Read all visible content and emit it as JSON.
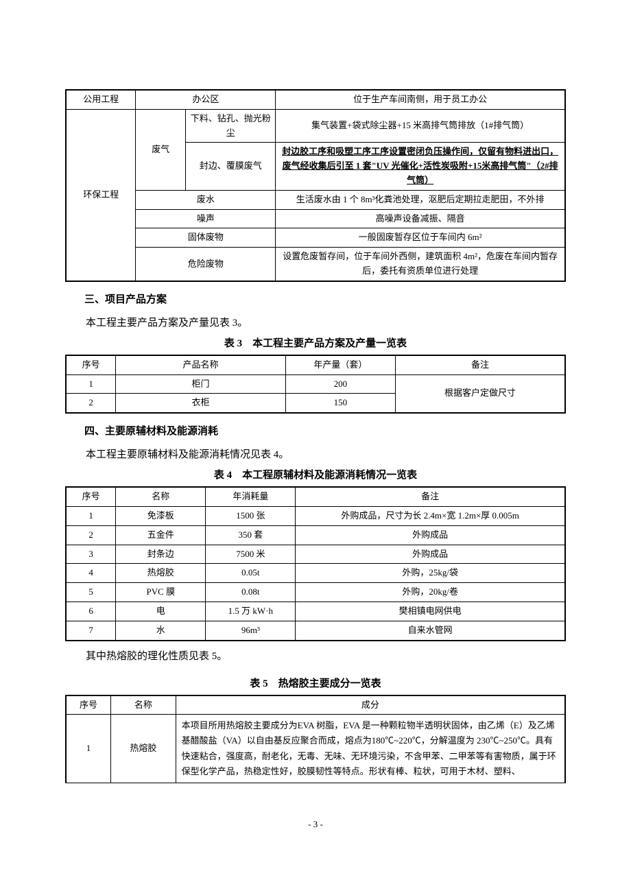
{
  "table1": {
    "r1c1": "公用工程",
    "r1c2": "办公区",
    "r1c3": "位于生产车间南侧，用于员工办公",
    "r2c1": "环保工程",
    "r2c2": "废气",
    "r2c3": "下料、钻孔、抛光粉尘",
    "r2c4": "集气装置+袋式除尘器+15 米高排气筒排放（1#排气筒）",
    "r3c3": "封边、覆膜废气",
    "r3c4": "封边胶工序和吸塑工序工序设置密闭负压操作间，仅留有物料进出口，废气经收集后引至 1 套\"UV 光催化+活性炭吸附+15米高排气筒\"（2#排气筒）",
    "r4c2": "废水",
    "r4c3": "生活废水由 1 个 8m³化粪池处理，沤肥后定期拉走肥田，不外排",
    "r5c2": "噪声",
    "r5c3": "高噪声设备减振、隔音",
    "r6c2": "固体废物",
    "r6c3": "一般固废暂存区位于车间内 6m²",
    "r7c2": "危险废物",
    "r7c3": "设置危废暂存间，位于车间外西侧，建筑面积 4m²，危废在车间内暂存后，委托有资质单位进行处理"
  },
  "section3": {
    "heading": "三、项目产品方案",
    "body": "本工程主要产品方案及产量见表 3。",
    "caption": "表 3　本工程主要产品方案及产量一览表",
    "headers": {
      "c1": "序号",
      "c2": "产品名称",
      "c3": "年产量（套）",
      "c4": "备注"
    },
    "rows": [
      {
        "c1": "1",
        "c2": "柜门",
        "c3": "200"
      },
      {
        "c1": "2",
        "c2": "衣柜",
        "c3": "150"
      }
    ],
    "note": "根据客户定做尺寸"
  },
  "section4": {
    "heading": "四、主要原辅材料及能源消耗",
    "body": "本工程主要原辅材料及能源消耗情况见表 4。",
    "caption": "表 4　本工程原辅材料及能源消耗情况一览表",
    "headers": {
      "c1": "序号",
      "c2": "名称",
      "c3": "年消耗量",
      "c4": "备注"
    },
    "rows": [
      {
        "c1": "1",
        "c2": "免漆板",
        "c3": "1500 张",
        "c4": "外购成品，尺寸为长 2.4m×宽 1.2m×厚 0.005m"
      },
      {
        "c1": "2",
        "c2": "五金件",
        "c3": "350 套",
        "c4": "外购成品"
      },
      {
        "c1": "3",
        "c2": "封条边",
        "c3": "7500 米",
        "c4": "外购成品"
      },
      {
        "c1": "4",
        "c2": "热熔胶",
        "c3": "0.05t",
        "c4": "外购，25kg/袋"
      },
      {
        "c1": "5",
        "c2": "PVC 膜",
        "c3": "0.08t",
        "c4": "外购，20kg/卷"
      },
      {
        "c1": "6",
        "c2": "电",
        "c3": "1.5 万 kW·h",
        "c4": "樊相镇电网供电"
      },
      {
        "c1": "7",
        "c2": "水",
        "c3": "96m³",
        "c4": "自来水管网"
      }
    ]
  },
  "section5": {
    "body": "其中热熔胶的理化性质见表 5。",
    "caption": "表 5　热熔胶主要成分一览表",
    "headers": {
      "c1": "序号",
      "c2": "名称",
      "c3": "成分"
    },
    "row": {
      "c1": "1",
      "c2": "热熔胶",
      "c3": "本项目所用热熔胶主要成分为EVA 树脂，EVA 是一种颗粒物半透明状固体，由乙烯（E）及乙烯基醋酸盐（VA）以自由基反应聚合而成，熔点为180℃~220℃，分解温度为 230℃~250℃。具有快速粘合，强度高，耐老化，无毒、无味、无环境污染，不含甲苯、二甲苯等有害物质，属于环保型化学产品，热稳定性好，胶膜韧性等特点。形状有棒、粒状，可用于木材、塑料、"
    }
  },
  "styling": {
    "font_family": "SimSun",
    "body_fontsize": 15,
    "table_fontsize": 13,
    "border_color": "#000000",
    "background_color": "#ffffff",
    "text_color": "#000000",
    "outer_border_width": 2,
    "inner_border_width": 1,
    "table1_col_widths_pct": [
      14,
      10,
      18,
      58
    ],
    "table3_col_widths_pct": [
      10,
      34,
      22,
      34
    ],
    "table4_col_widths_pct": [
      10,
      18,
      18,
      54
    ],
    "table5_col_widths_pct": [
      9,
      13,
      78
    ]
  },
  "page_number": "- 3 -"
}
